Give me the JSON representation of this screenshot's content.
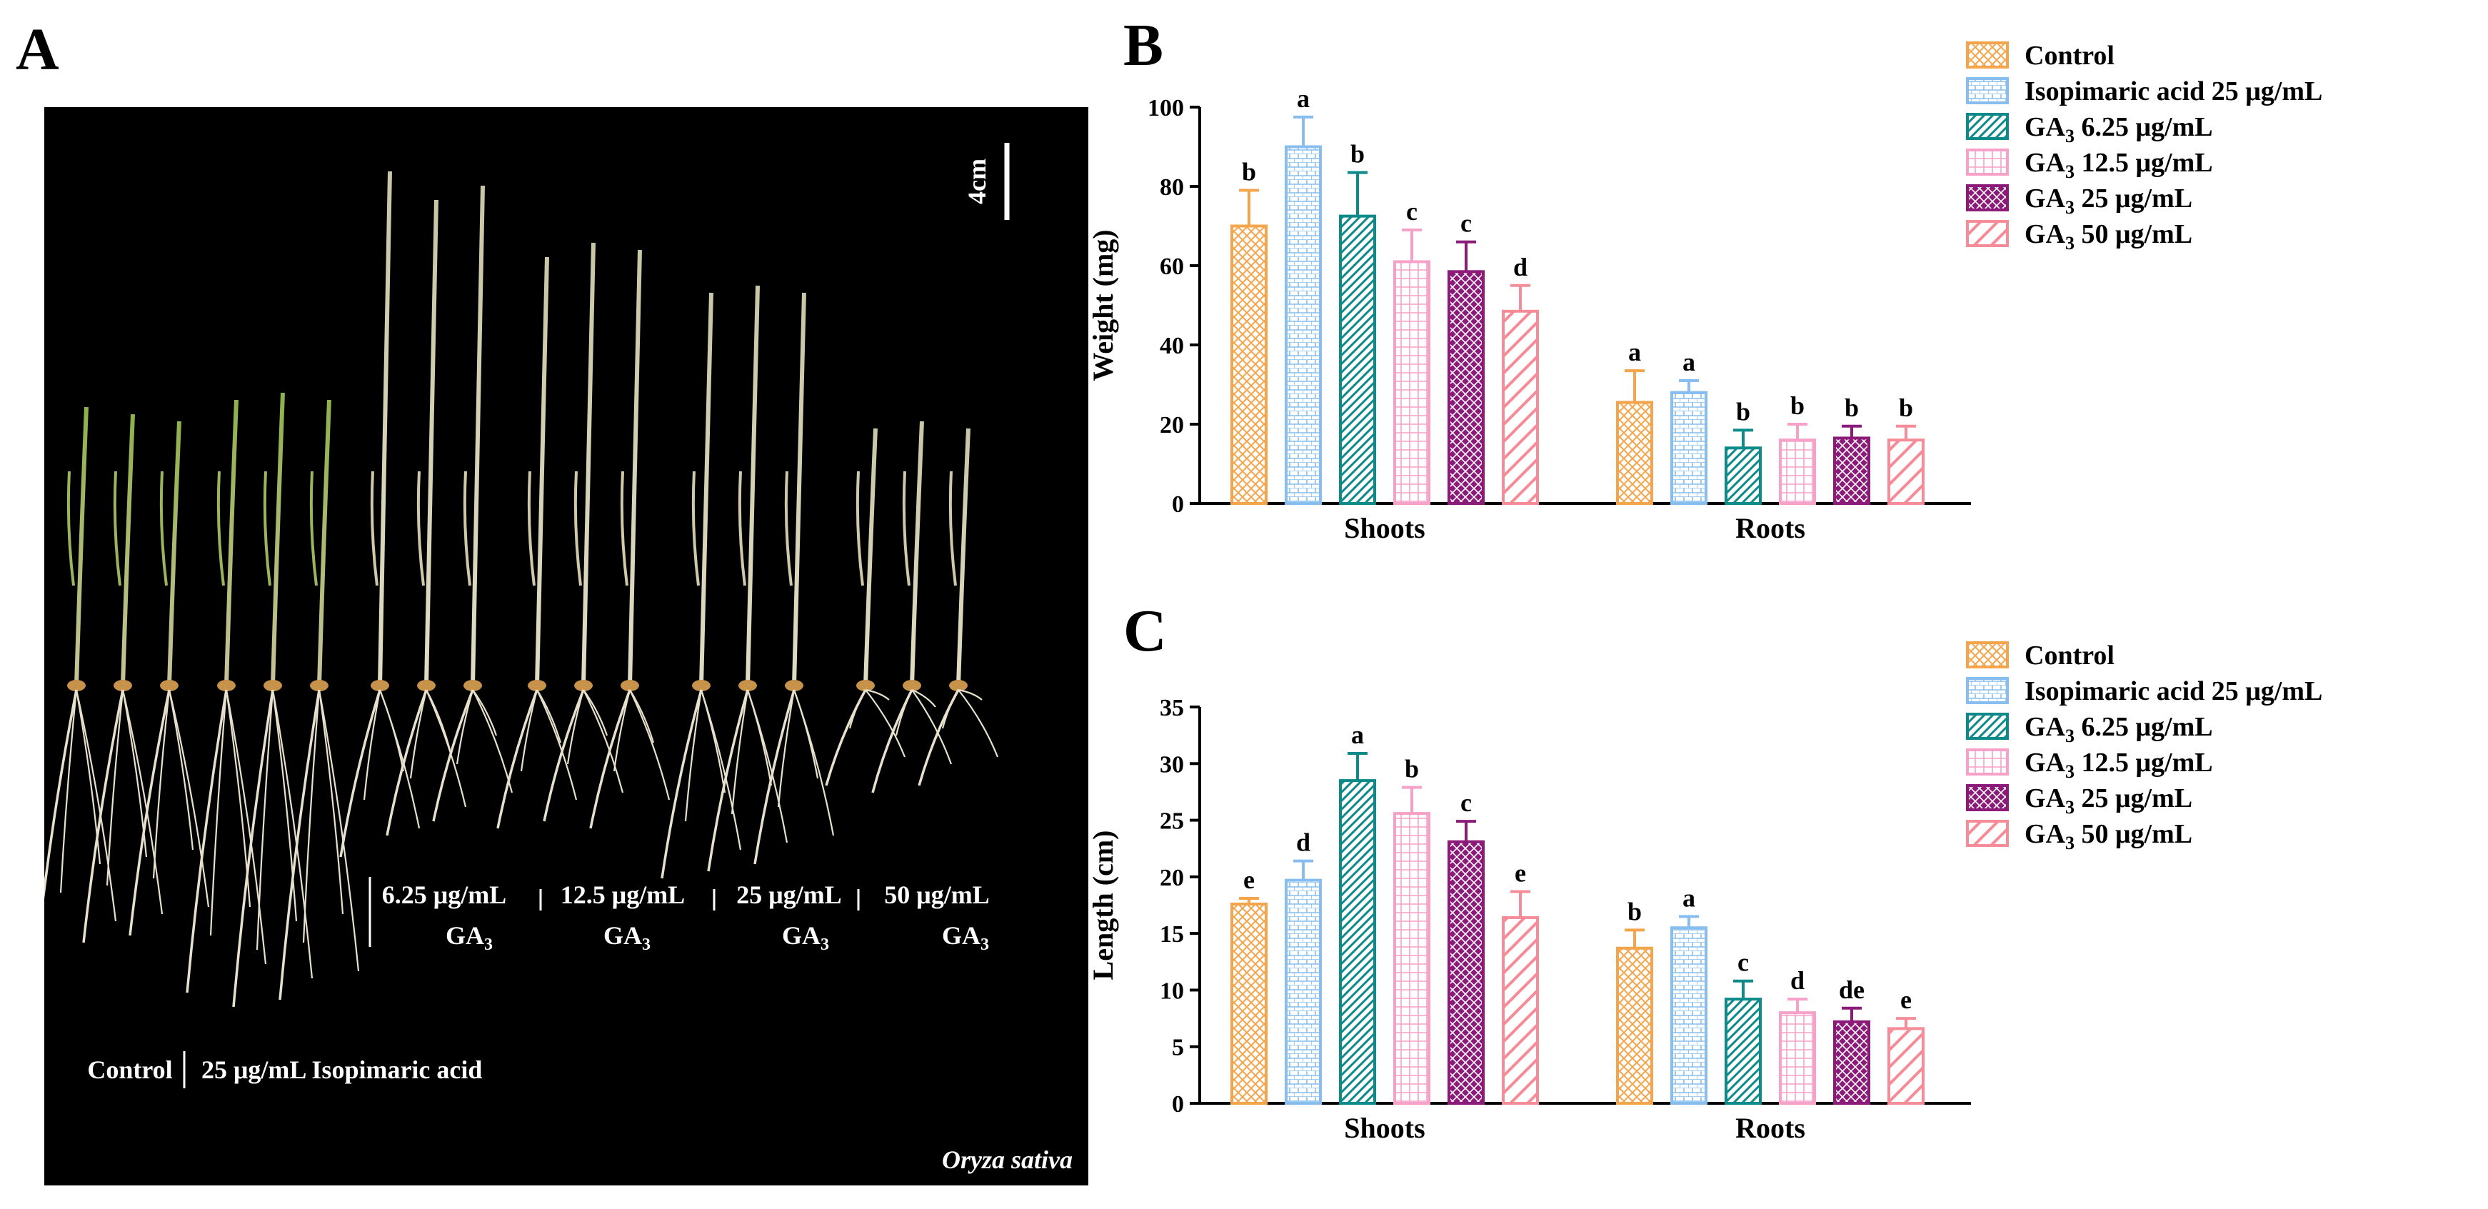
{
  "panel_a": {
    "letter": "A",
    "scale_label": "4cm",
    "groups": [
      {
        "line1": "6.25 μg/mL",
        "line2": "GA",
        "sub": "3"
      },
      {
        "line1": "12.5 μg/mL",
        "line2": "GA",
        "sub": "3"
      },
      {
        "line1": "25 μg/mL",
        "line2": "GA",
        "sub": "3"
      },
      {
        "line1": "50 μg/mL",
        "line2": "GA",
        "sub": "3"
      }
    ],
    "control_label": "Control",
    "isopimaric_label": "25 μg/mL Isopimaric acid",
    "species": "Oryza sativa"
  },
  "legend": [
    {
      "text": "Control",
      "ga": false
    },
    {
      "text": "Isopimaric acid 25 μg/mL",
      "ga": false
    },
    {
      "text": "GA",
      "sub": "3",
      "rest": " 6.25 μg/mL",
      "ga": true
    },
    {
      "text": "GA",
      "sub": "3",
      "rest": " 12.5 μg/mL",
      "ga": true
    },
    {
      "text": "GA",
      "sub": "3",
      "rest": " 25 μg/mL",
      "ga": true
    },
    {
      "text": "GA",
      "sub": "3",
      "rest": " 50 μg/mL",
      "ga": true
    }
  ],
  "colors": {
    "control": "#F4A44A",
    "isopimaric": "#87BDEF",
    "ga625": "#0D8A8A",
    "ga125": "#F7A1C9",
    "ga25": "#8B1A78",
    "ga50": "#F58C98"
  },
  "chart_data": [
    {
      "type": "bar",
      "panel": "B",
      "ylabel": "Weight (mg)",
      "xlabel": "",
      "ylim": [
        0,
        100
      ],
      "yticks": [
        0,
        20,
        40,
        60,
        80,
        100
      ],
      "categories": [
        "Shoots",
        "Roots"
      ],
      "series": [
        {
          "name": "Control",
          "values": [
            70,
            25.5
          ],
          "errors": [
            9,
            8
          ],
          "letters": [
            "b",
            "a"
          ]
        },
        {
          "name": "Isopimaric acid 25 μg/mL",
          "values": [
            90,
            28
          ],
          "errors": [
            7.5,
            3
          ],
          "letters": [
            "a",
            "a"
          ]
        },
        {
          "name": "GA3 6.25 μg/mL",
          "values": [
            72.5,
            14
          ],
          "errors": [
            11,
            4.5
          ],
          "letters": [
            "b",
            "b"
          ]
        },
        {
          "name": "GA3 12.5 μg/mL",
          "values": [
            61,
            16
          ],
          "errors": [
            8,
            4
          ],
          "letters": [
            "c",
            "b"
          ]
        },
        {
          "name": "GA3 25 μg/mL",
          "values": [
            58.5,
            16.5
          ],
          "errors": [
            7.5,
            3
          ],
          "letters": [
            "c",
            "b"
          ]
        },
        {
          "name": "GA3 50 μg/mL",
          "values": [
            48.5,
            16
          ],
          "errors": [
            6.5,
            3.5
          ],
          "letters": [
            "d",
            "b"
          ]
        }
      ]
    },
    {
      "type": "bar",
      "panel": "C",
      "ylabel": "Length (cm)",
      "xlabel": "",
      "ylim": [
        0,
        35
      ],
      "yticks": [
        0,
        5,
        10,
        15,
        20,
        25,
        30,
        35
      ],
      "categories": [
        "Shoots",
        "Roots"
      ],
      "series": [
        {
          "name": "Control",
          "values": [
            17.6,
            13.7
          ],
          "errors": [
            0.5,
            1.6
          ],
          "letters": [
            "e",
            "b"
          ]
        },
        {
          "name": "Isopimaric acid 25 μg/mL",
          "values": [
            19.7,
            15.5
          ],
          "errors": [
            1.7,
            1.0
          ],
          "letters": [
            "d",
            "a"
          ]
        },
        {
          "name": "GA3 6.25 μg/mL",
          "values": [
            28.5,
            9.2
          ],
          "errors": [
            2.4,
            1.6
          ],
          "letters": [
            "a",
            "c"
          ]
        },
        {
          "name": "GA3 12.5 μg/mL",
          "values": [
            25.6,
            8.0
          ],
          "errors": [
            2.3,
            1.2
          ],
          "letters": [
            "b",
            "d"
          ]
        },
        {
          "name": "GA3 25 μg/mL",
          "values": [
            23.1,
            7.2
          ],
          "errors": [
            1.8,
            1.2
          ],
          "letters": [
            "c",
            "de"
          ]
        },
        {
          "name": "GA3 50 μg/mL",
          "values": [
            16.4,
            6.6
          ],
          "errors": [
            2.3,
            0.9
          ],
          "letters": [
            "e",
            "e"
          ]
        }
      ]
    }
  ]
}
